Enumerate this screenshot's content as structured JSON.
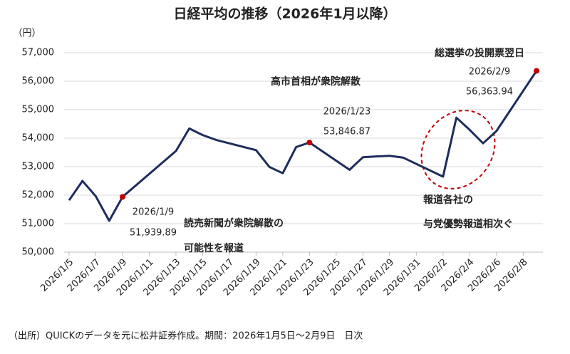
{
  "chart_data": {
    "type": "line",
    "title": "日経平均の推移（2026年1月以降）",
    "y_unit": "（円）",
    "source": "（出所）QUICKのデータを元に松井証券作成。期間：2026年1月5日〜2月9日　日次",
    "x": [
      "2026/1/5",
      "2026/1/6",
      "2026/1/7",
      "2026/1/8",
      "2026/1/9",
      "2026/1/13",
      "2026/1/14",
      "2026/1/15",
      "2026/1/16",
      "2026/1/19",
      "2026/1/20",
      "2026/1/21",
      "2026/1/22",
      "2026/1/23",
      "2026/1/26",
      "2026/1/27",
      "2026/1/28",
      "2026/1/29",
      "2026/1/30",
      "2026/2/2",
      "2026/2/3",
      "2026/2/4",
      "2026/2/5",
      "2026/2/6",
      "2026/2/9"
    ],
    "series": [
      {
        "name": "日経平均",
        "color": "#1f2d5c",
        "values": [
          51820,
          52500,
          51960,
          51100,
          51939.89,
          53550,
          54340,
          54110,
          53940,
          53580,
          52990,
          52770,
          53690,
          53846.87,
          52890,
          53330,
          53360,
          53380,
          53320,
          52650,
          54720,
          54290,
          53820,
          54250,
          56363.94
        ],
        "value_labels": [
          null,
          null,
          null,
          null,
          "51,939.89",
          null,
          null,
          null,
          null,
          null,
          null,
          null,
          null,
          "53,846.87",
          null,
          null,
          null,
          null,
          null,
          null,
          null,
          null,
          null,
          null,
          "56,363.94"
        ]
      }
    ],
    "highlight_color": "#c00000",
    "ylim": [
      50000,
      57000
    ],
    "yticks": [
      {
        "value": 50000,
        "label": "50,000"
      },
      {
        "value": 51000,
        "label": "51,000"
      },
      {
        "value": 52000,
        "label": "52,000"
      },
      {
        "value": 53000,
        "label": "53,000"
      },
      {
        "value": 54000,
        "label": "54,000"
      },
      {
        "value": 55000,
        "label": "55,000"
      },
      {
        "value": 56000,
        "label": "56,000"
      },
      {
        "value": 57000,
        "label": "57,000"
      }
    ],
    "xticks": [
      "2026/1/5",
      "2026/1/7",
      "2026/1/9",
      "2026/1/11",
      "2026/1/13",
      "2026/1/15",
      "2026/1/17",
      "2026/1/19",
      "2026/1/21",
      "2026/1/23",
      "2026/1/25",
      "2026/1/27",
      "2026/1/29",
      "2026/1/31",
      "2026/2/2",
      "2026/2/4",
      "2026/2/6",
      "2026/2/8"
    ],
    "grid": true,
    "annotations": [
      {
        "lines": [
          "読売新聞が衆院解散の",
          "可能性を報道"
        ]
      },
      {
        "lines": [
          "高市首相が衆院解散"
        ]
      },
      {
        "lines": [
          "報道各社の",
          "与党優勢報道相次ぐ"
        ]
      },
      {
        "lines": [
          "総選挙の投開票翌日"
        ]
      }
    ]
  }
}
